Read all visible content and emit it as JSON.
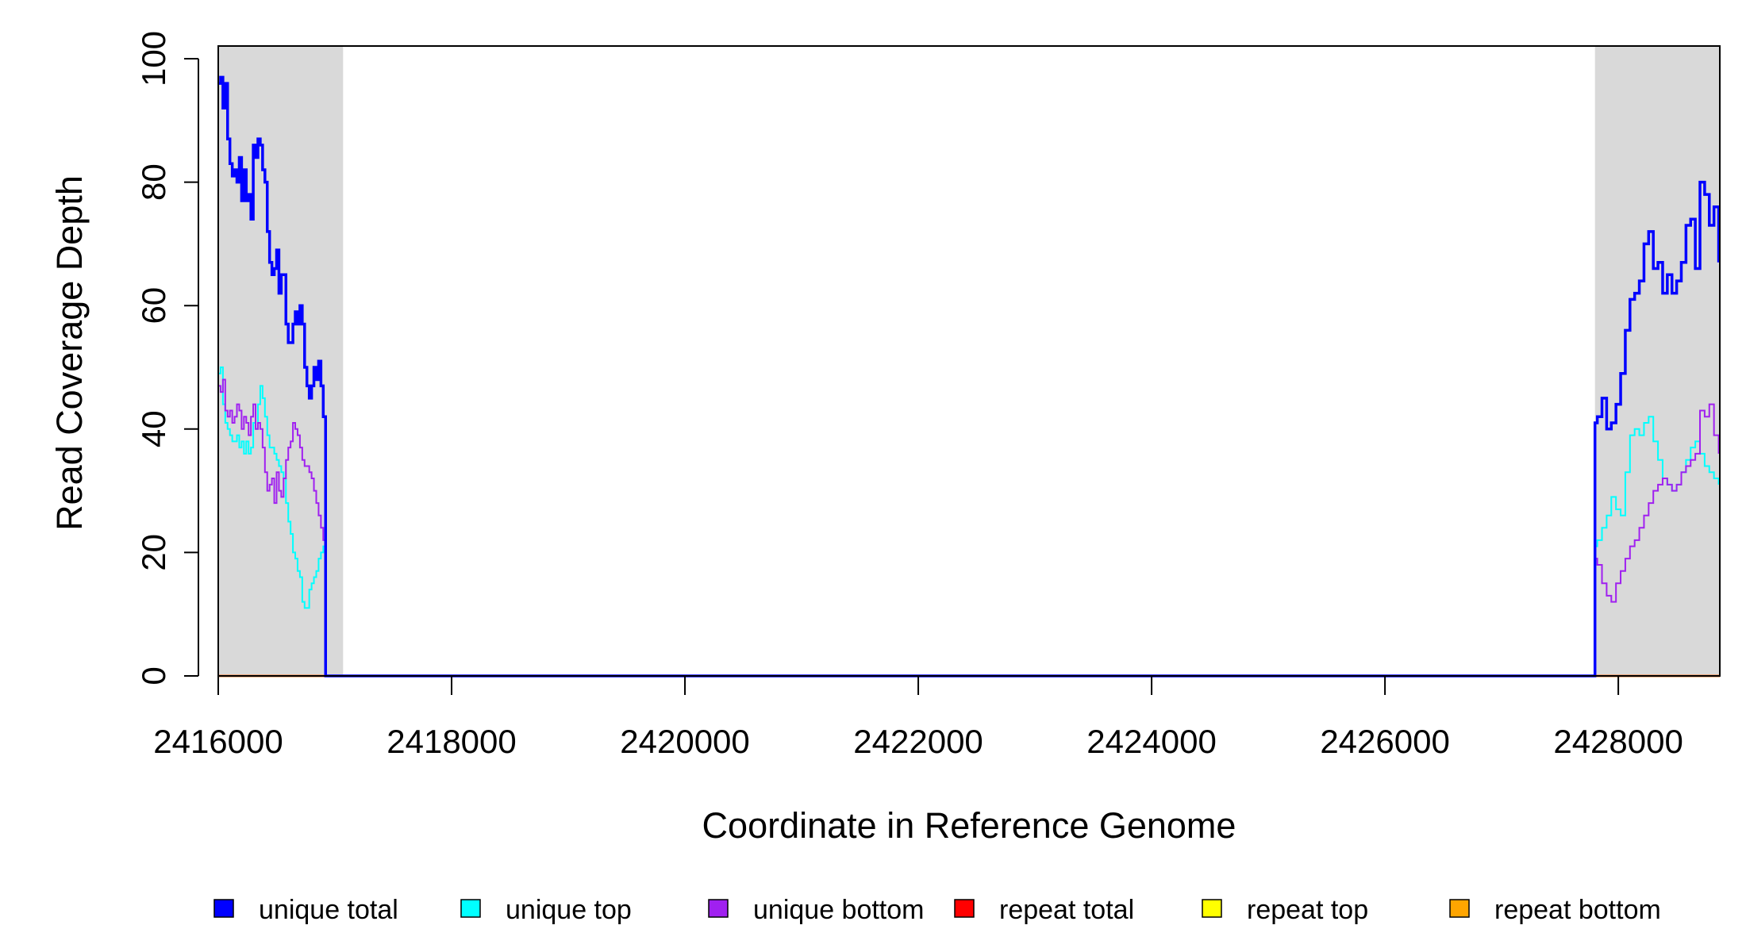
{
  "chart_data": {
    "type": "line",
    "title": "",
    "xlabel": "Coordinate in Reference Genome",
    "ylabel": "Read Coverage Depth",
    "xlim": [
      2416000,
      2428870
    ],
    "ylim": [
      0,
      102
    ],
    "x_ticks": [
      2416000,
      2418000,
      2420000,
      2422000,
      2424000,
      2426000,
      2428000
    ],
    "x_tick_labels": [
      "2416000",
      "2418000",
      "2420000",
      "2422000",
      "2424000",
      "2426000",
      "2428000"
    ],
    "y_ticks": [
      0,
      20,
      40,
      60,
      80,
      100
    ],
    "y_tick_labels": [
      "0",
      "20",
      "40",
      "60",
      "80",
      "100"
    ],
    "grid": false,
    "legend_position": "bottom",
    "shaded_regions": [
      {
        "x_start": 2416000,
        "x_end": 2417070,
        "color": "#d9d9d9"
      },
      {
        "x_start": 2427800,
        "x_end": 2428870,
        "color": "#d9d9d9"
      }
    ],
    "series": [
      {
        "name": "unique total",
        "color": "#0000ff",
        "x": [
          2416000,
          2416020,
          2416040,
          2416060,
          2416080,
          2416100,
          2416120,
          2416140,
          2416160,
          2416180,
          2416200,
          2416220,
          2416240,
          2416260,
          2416280,
          2416300,
          2416320,
          2416340,
          2416360,
          2416380,
          2416400,
          2416420,
          2416440,
          2416460,
          2416480,
          2416500,
          2416520,
          2416540,
          2416560,
          2416580,
          2416600,
          2416620,
          2416640,
          2416660,
          2416680,
          2416700,
          2416720,
          2416740,
          2416760,
          2416780,
          2416800,
          2416820,
          2416840,
          2416860,
          2416880,
          2416900,
          2416920,
          2416940,
          2416960,
          2416980,
          2417000,
          2417020,
          2417040,
          2417060,
          2417080,
          2427780,
          2427800,
          2427820,
          2427860,
          2427900,
          2427940,
          2427980,
          2428020,
          2428060,
          2428100,
          2428140,
          2428180,
          2428220,
          2428260,
          2428300,
          2428340,
          2428380,
          2428420,
          2428460,
          2428500,
          2428540,
          2428580,
          2428620,
          2428660,
          2428700,
          2428740,
          2428780,
          2428820,
          2428860
        ],
        "y": [
          96,
          97,
          92,
          96,
          87,
          83,
          81,
          82,
          80,
          84,
          77,
          82,
          77,
          78,
          74,
          86,
          84,
          87,
          86,
          82,
          80,
          72,
          67,
          65,
          66,
          69,
          62,
          65,
          65,
          57,
          54,
          54,
          57,
          59,
          57,
          60,
          57,
          50,
          47,
          45,
          47,
          50,
          48,
          51,
          47,
          42,
          0,
          0,
          0,
          0,
          0,
          0,
          0,
          0,
          0,
          0,
          41,
          42,
          45,
          40,
          41,
          44,
          49,
          56,
          61,
          62,
          64,
          70,
          72,
          66,
          67,
          62,
          65,
          62,
          64,
          67,
          73,
          74,
          66,
          80,
          78,
          73,
          76,
          67
        ],
        "note_x_repeat": ""
      },
      {
        "name": "unique top",
        "color": "#00ffff",
        "x": [
          2416000,
          2416020,
          2416040,
          2416060,
          2416080,
          2416100,
          2416120,
          2416140,
          2416160,
          2416180,
          2416200,
          2416220,
          2416240,
          2416260,
          2416280,
          2416300,
          2416320,
          2416340,
          2416360,
          2416380,
          2416400,
          2416420,
          2416440,
          2416460,
          2416480,
          2416500,
          2416520,
          2416540,
          2416560,
          2416580,
          2416600,
          2416620,
          2416640,
          2416660,
          2416680,
          2416700,
          2416720,
          2416740,
          2416760,
          2416780,
          2416800,
          2416820,
          2416840,
          2416860,
          2416880,
          2416900,
          2416920,
          2416940,
          2416960,
          2416980,
          2417000,
          2417020,
          2417040,
          2417060,
          2417080,
          2427780,
          2427800,
          2427820,
          2427860,
          2427900,
          2427940,
          2427980,
          2428020,
          2428060,
          2428100,
          2428140,
          2428180,
          2428220,
          2428260,
          2428300,
          2428340,
          2428380,
          2428420,
          2428460,
          2428500,
          2428540,
          2428580,
          2428620,
          2428660,
          2428700,
          2428740,
          2428780,
          2428820,
          2428860
        ],
        "y": [
          49,
          50,
          44,
          41,
          40,
          39,
          38,
          38,
          39,
          37,
          38,
          36,
          38,
          36,
          37,
          41,
          40,
          44,
          47,
          45,
          42,
          39,
          37,
          37,
          36,
          35,
          34,
          33,
          32,
          28,
          25,
          23,
          20,
          19,
          17,
          16,
          12,
          11,
          11,
          14,
          15,
          16,
          17,
          19,
          20,
          21,
          0,
          0,
          0,
          0,
          0,
          0,
          0,
          0,
          0,
          0,
          21,
          22,
          24,
          26,
          29,
          27,
          26,
          33,
          39,
          40,
          39,
          41,
          42,
          38,
          35,
          32,
          31,
          30,
          31,
          33,
          35,
          37,
          38,
          36,
          34,
          33,
          32,
          31
        ],
        "note_x_repeat": ""
      },
      {
        "name": "unique bottom",
        "color": "#a020f0",
        "x": [
          2416000,
          2416020,
          2416040,
          2416060,
          2416080,
          2416100,
          2416120,
          2416140,
          2416160,
          2416180,
          2416200,
          2416220,
          2416240,
          2416260,
          2416280,
          2416300,
          2416320,
          2416340,
          2416360,
          2416380,
          2416400,
          2416420,
          2416440,
          2416460,
          2416480,
          2416500,
          2416520,
          2416540,
          2416560,
          2416580,
          2416600,
          2416620,
          2416640,
          2416660,
          2416680,
          2416700,
          2416720,
          2416740,
          2416760,
          2416780,
          2416800,
          2416820,
          2416840,
          2416860,
          2416880,
          2416900,
          2416920,
          2416940,
          2416960,
          2416980,
          2417000,
          2417020,
          2417040,
          2417060,
          2417080,
          2427780,
          2427800,
          2427820,
          2427860,
          2427900,
          2427940,
          2427980,
          2428020,
          2428060,
          2428100,
          2428140,
          2428180,
          2428220,
          2428260,
          2428300,
          2428340,
          2428380,
          2428420,
          2428460,
          2428500,
          2428540,
          2428580,
          2428620,
          2428660,
          2428700,
          2428740,
          2428780,
          2428820,
          2428860
        ],
        "y": [
          47,
          46,
          48,
          43,
          42,
          43,
          41,
          42,
          44,
          43,
          40,
          42,
          41,
          39,
          42,
          44,
          40,
          41,
          40,
          37,
          33,
          30,
          31,
          32,
          28,
          33,
          30,
          29,
          32,
          35,
          37,
          38,
          41,
          40,
          39,
          37,
          35,
          34,
          34,
          33,
          32,
          30,
          28,
          26,
          24,
          22,
          0,
          0,
          0,
          0,
          0,
          0,
          0,
          0,
          0,
          0,
          19,
          18,
          15,
          13,
          12,
          15,
          17,
          19,
          21,
          22,
          24,
          26,
          28,
          30,
          31,
          32,
          31,
          30,
          31,
          33,
          34,
          35,
          36,
          43,
          42,
          44,
          39,
          36
        ],
        "note_x_repeat": ""
      },
      {
        "name": "repeat total",
        "color": "#ff0000",
        "x": [
          2416000,
          2428870
        ],
        "y": [
          0,
          0
        ]
      },
      {
        "name": "repeat top",
        "color": "#ffff00",
        "x": [
          2416000,
          2428870
        ],
        "y": [
          0,
          0
        ]
      },
      {
        "name": "repeat bottom",
        "color": "#ffa500",
        "x": [
          2416000,
          2428870
        ],
        "y": [
          0,
          0
        ]
      }
    ],
    "legend": [
      {
        "label": "unique total",
        "color": "#0000ff"
      },
      {
        "label": "unique top",
        "color": "#00ffff"
      },
      {
        "label": "unique bottom",
        "color": "#a020f0"
      },
      {
        "label": "repeat total",
        "color": "#ff0000"
      },
      {
        "label": "repeat top",
        "color": "#ffff00"
      },
      {
        "label": "repeat bottom",
        "color": "#ffa500"
      }
    ]
  }
}
